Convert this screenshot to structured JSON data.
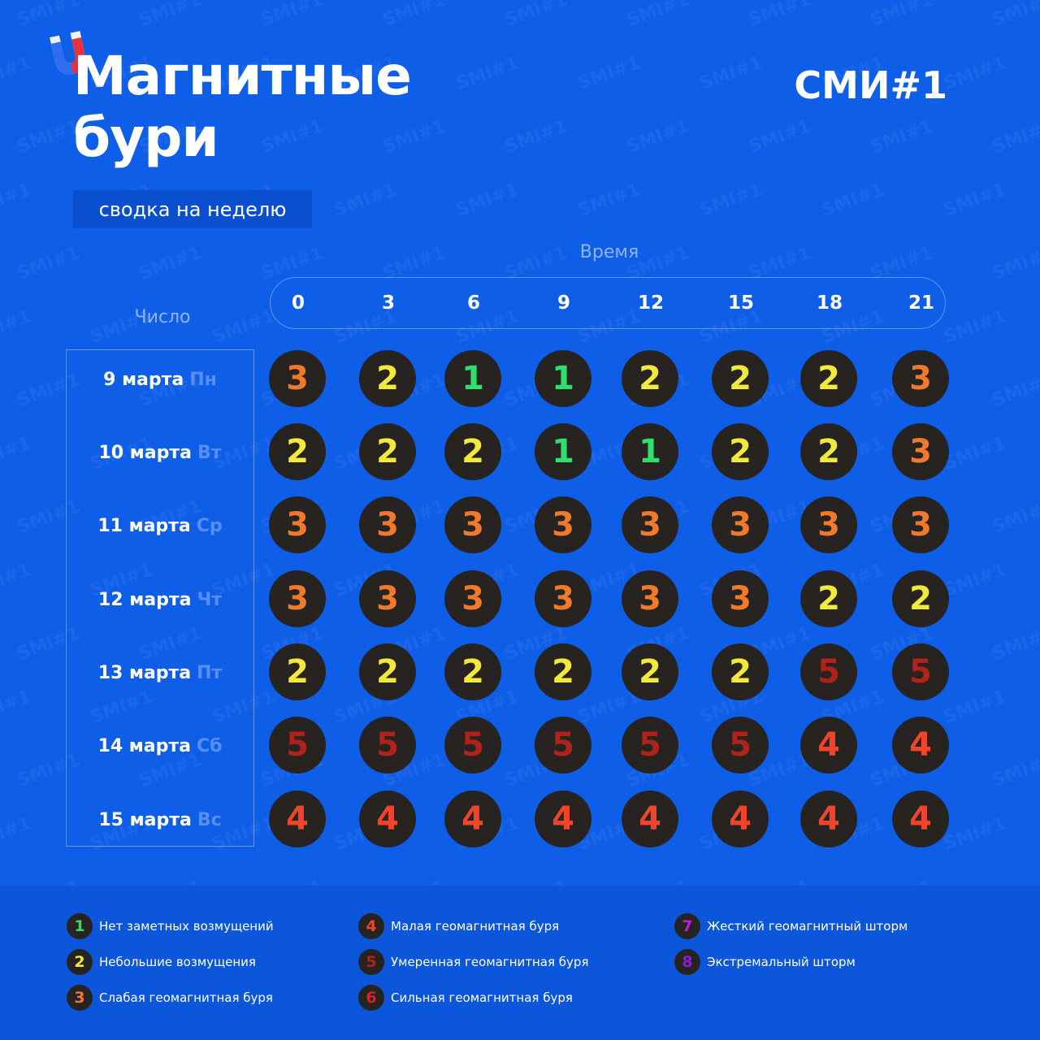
{
  "brand": "СМИ#1",
  "title_line1": "Магнитные",
  "title_line2": "бури",
  "subtitle": "сводка на неделю",
  "time_axis_label": "Время",
  "date_axis_label": "Число",
  "times": [
    "0",
    "3",
    "6",
    "9",
    "12",
    "15",
    "18",
    "21"
  ],
  "level_colors": {
    "1": "#2ee06b",
    "2": "#f1ea3c",
    "3": "#f07a2c",
    "4": "#f0452a",
    "5": "#b1231a",
    "6": "#d9232a",
    "7": "#c21bd6",
    "8": "#8a1ed6"
  },
  "days": [
    {
      "date": "9 марта",
      "weekday": "Пн",
      "levels": [
        3,
        2,
        1,
        1,
        2,
        2,
        2,
        3
      ]
    },
    {
      "date": "10 марта",
      "weekday": "Вт",
      "levels": [
        2,
        2,
        2,
        1,
        1,
        2,
        2,
        3
      ]
    },
    {
      "date": "11 марта",
      "weekday": "Ср",
      "levels": [
        3,
        3,
        3,
        3,
        3,
        3,
        3,
        3
      ]
    },
    {
      "date": "12 марта",
      "weekday": "Чт",
      "levels": [
        3,
        3,
        3,
        3,
        3,
        3,
        2,
        2
      ]
    },
    {
      "date": "13 марта",
      "weekday": "Пт",
      "levels": [
        2,
        2,
        2,
        2,
        2,
        2,
        5,
        5
      ]
    },
    {
      "date": "14 марта",
      "weekday": "Сб",
      "levels": [
        5,
        5,
        5,
        5,
        5,
        5,
        4,
        4
      ]
    },
    {
      "date": "15 марта",
      "weekday": "Вс",
      "levels": [
        4,
        4,
        4,
        4,
        4,
        4,
        4,
        4
      ]
    }
  ],
  "legend": [
    {
      "level": "1",
      "text": "Нет заметных возмущений"
    },
    {
      "level": "2",
      "text": "Небольшие возмущения"
    },
    {
      "level": "3",
      "text": "Слабая геомагнитная буря"
    },
    {
      "level": "4",
      "text": "Малая геомагнитная буря"
    },
    {
      "level": "5",
      "text": "Умеренная геомагнитная буря"
    },
    {
      "level": "6",
      "text": "Сильная геомагнитная буря"
    },
    {
      "level": "7",
      "text": "Жесткий геомагнитный шторм"
    },
    {
      "level": "8",
      "text": "Экстремальный шторм"
    }
  ],
  "watermark_text": "SMI#1",
  "icons": {
    "logo": "magnet-icon"
  }
}
